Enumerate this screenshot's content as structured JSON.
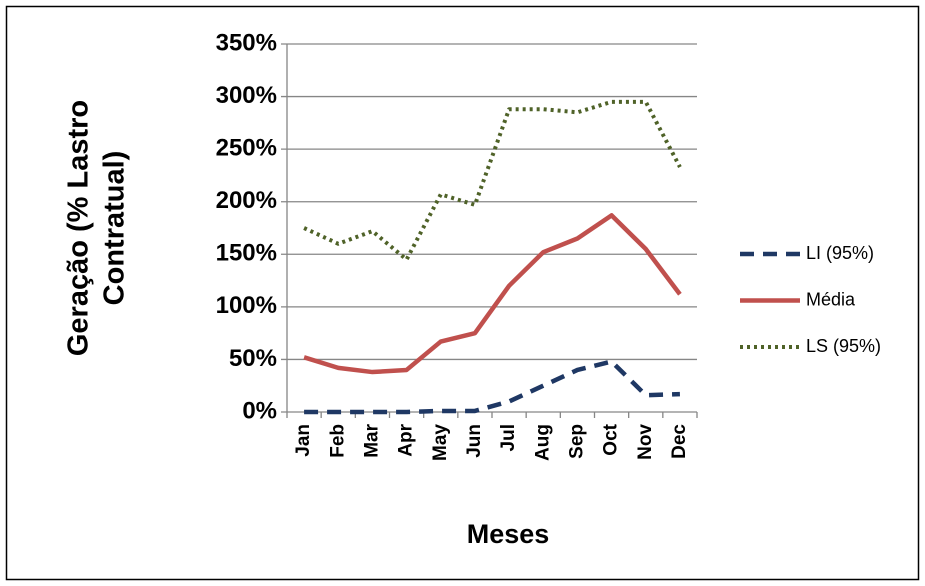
{
  "chart_data": {
    "type": "line",
    "ylabel": [
      "Geração (% Lastro",
      "Contratual)"
    ],
    "xlabel": "Meses",
    "categories": [
      "Jan",
      "Feb",
      "Mar",
      "Apr",
      "May",
      "Jun",
      "Jul",
      "Aug",
      "Sep",
      "Oct",
      "Nov",
      "Dec"
    ],
    "series": [
      {
        "name": "LI (95%)",
        "color": "#1f3864",
        "dash": "dashed",
        "values": [
          0,
          0,
          0,
          0,
          1,
          1,
          10,
          25,
          40,
          48,
          16,
          17
        ]
      },
      {
        "name": "Média",
        "color": "#c0504d",
        "dash": "solid",
        "values": [
          52,
          42,
          38,
          40,
          67,
          75,
          120,
          152,
          165,
          187,
          155,
          112
        ]
      },
      {
        "name": "LS (95%)",
        "color": "#4f6228",
        "dash": "dotted",
        "values": [
          175,
          160,
          172,
          145,
          207,
          197,
          288,
          288,
          285,
          295,
          295,
          233
        ]
      }
    ],
    "ylim": [
      0,
      350
    ],
    "yticks": [
      {
        "value": 0,
        "label": "0%"
      },
      {
        "value": 50,
        "label": "50%"
      },
      {
        "value": 100,
        "label": "100%"
      },
      {
        "value": 150,
        "label": "150%"
      },
      {
        "value": 200,
        "label": "200%"
      },
      {
        "value": 250,
        "label": "250%"
      },
      {
        "value": 300,
        "label": "300%"
      },
      {
        "value": 350,
        "label": "350%"
      }
    ],
    "grid": true,
    "legend": "right"
  }
}
